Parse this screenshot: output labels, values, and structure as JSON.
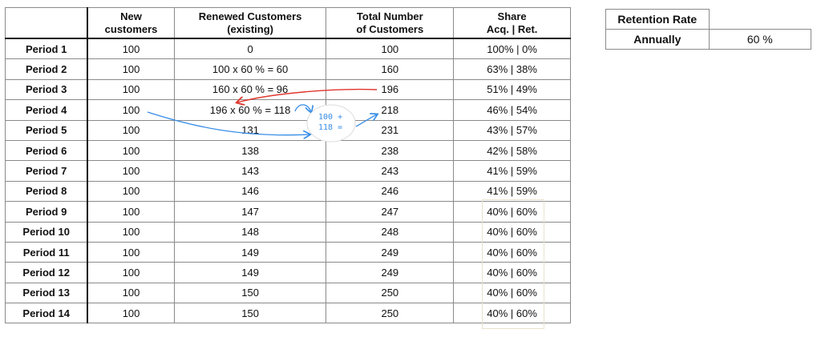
{
  "main_table": {
    "headers": [
      "",
      "New\ncustomers",
      "Renewed Customers\n(existing)",
      "Total Number\nof Customers",
      "Share\nAcq. | Ret."
    ],
    "rows": [
      [
        "Period 1",
        "100",
        "0",
        "100",
        "100% | 0%"
      ],
      [
        "Period 2",
        "100",
        "100 x 60 % = 60",
        "160",
        "63% | 38%"
      ],
      [
        "Period 3",
        "100",
        "160 x 60 % = 96",
        "196",
        "51% | 49%"
      ],
      [
        "Period 4",
        "100",
        "196 x 60 % = 118",
        "218",
        "46% | 54%"
      ],
      [
        "Period 5",
        "100",
        "131",
        "231",
        "43% | 57%"
      ],
      [
        "Period 6",
        "100",
        "138",
        "238",
        "42% | 58%"
      ],
      [
        "Period 7",
        "100",
        "143",
        "243",
        "41% | 59%"
      ],
      [
        "Period 8",
        "100",
        "146",
        "246",
        "41% | 59%"
      ],
      [
        "Period 9",
        "100",
        "147",
        "247",
        "40% | 60%"
      ],
      [
        "Period 10",
        "100",
        "148",
        "248",
        "40% | 60%"
      ],
      [
        "Period 11",
        "100",
        "149",
        "249",
        "40% | 60%"
      ],
      [
        "Period 12",
        "100",
        "149",
        "249",
        "40% | 60%"
      ],
      [
        "Period 13",
        "100",
        "150",
        "250",
        "40% | 60%"
      ],
      [
        "Period 14",
        "100",
        "150",
        "250",
        "40% | 60%"
      ]
    ]
  },
  "retention": {
    "title": "Retention Rate",
    "label": "Annually",
    "value": "60 %"
  },
  "annotation": {
    "bubble_line1": "100 +",
    "bubble_line2": "118 ="
  },
  "colors": {
    "arrow_red": "#e0352b",
    "arrow_blue": "#3a8ee6"
  }
}
